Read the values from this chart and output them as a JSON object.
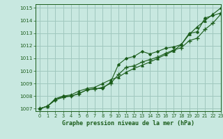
{
  "title": "Graphe pression niveau de la mer (hPa)",
  "bg_color": "#c8e8e0",
  "grid_color": "#a0c8be",
  "line_color": "#1a5c1a",
  "xlim": [
    -0.5,
    23
  ],
  "ylim": [
    1006.8,
    1015.3
  ],
  "xticks": [
    0,
    1,
    2,
    3,
    4,
    5,
    6,
    7,
    8,
    9,
    10,
    11,
    12,
    13,
    14,
    15,
    16,
    17,
    18,
    19,
    20,
    21,
    22,
    23
  ],
  "yticks": [
    1007,
    1008,
    1009,
    1010,
    1011,
    1012,
    1013,
    1014,
    1015
  ],
  "series": [
    [
      1007.0,
      1007.2,
      1007.7,
      1008.0,
      1008.0,
      1008.2,
      1008.5,
      1008.6,
      1008.6,
      1009.1,
      1010.5,
      1011.0,
      1011.15,
      1011.55,
      1011.35,
      1011.55,
      1011.8,
      1011.9,
      1012.1,
      1013.0,
      1013.1,
      1014.2,
      1014.4,
      1014.6
    ],
    [
      1007.0,
      1007.2,
      1007.7,
      1007.9,
      1008.0,
      1008.2,
      1008.5,
      1008.55,
      1008.7,
      1009.0,
      1009.7,
      1010.3,
      1010.4,
      1010.7,
      1010.9,
      1011.1,
      1011.4,
      1011.65,
      1011.85,
      1012.4,
      1012.6,
      1013.3,
      1013.8,
      1014.5
    ],
    [
      1007.0,
      1007.2,
      1007.8,
      1008.0,
      1008.1,
      1008.4,
      1008.6,
      1008.7,
      1009.0,
      1009.3,
      1009.5,
      1009.9,
      1010.2,
      1010.45,
      1010.7,
      1011.0,
      1011.3,
      1011.6,
      1012.1,
      1012.9,
      1013.5,
      1014.0,
      1014.5,
      1015.0
    ]
  ],
  "xlabel_fontsize": 6.0,
  "ylabel_fontsize": 5.5,
  "xtick_fontsize": 4.8,
  "ytick_fontsize": 5.2
}
